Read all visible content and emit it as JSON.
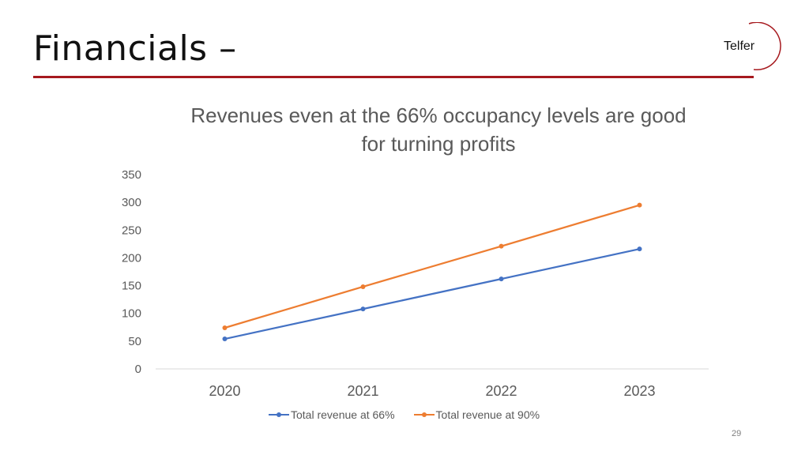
{
  "slide": {
    "title": "Financials –",
    "logo_text": "Telfer",
    "page_number": "29"
  },
  "colors": {
    "accent": "#a6191e",
    "series_66": "#4472c4",
    "series_90": "#ed7d31",
    "text_gray": "#595959"
  },
  "chart_data": {
    "type": "line",
    "title": "Revenues even at the 66% occupancy levels are good for turning profits",
    "x": [
      "2020",
      "2021",
      "2022",
      "2023"
    ],
    "series": [
      {
        "name": "Total revenue at 66%",
        "values": [
          54,
          108,
          162,
          216
        ]
      },
      {
        "name": "Total revenue at 90%",
        "values": [
          74,
          148,
          221,
          295
        ]
      }
    ],
    "ylim": [
      0,
      350
    ],
    "yticks": [
      "0",
      "50",
      "100",
      "150",
      "200",
      "250",
      "300",
      "350"
    ],
    "grid": false,
    "legend": "bottom",
    "xlabel": "",
    "ylabel": ""
  }
}
